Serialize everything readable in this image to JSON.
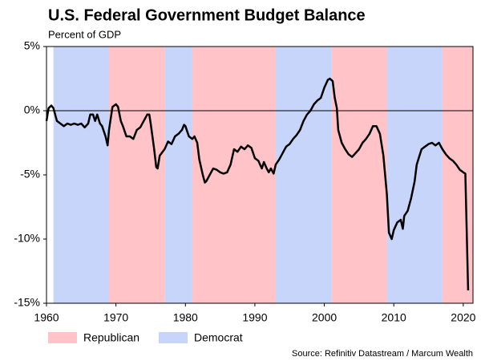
{
  "chart_data": {
    "type": "line",
    "title": "U.S. Federal Government Budget Balance",
    "subtitle": "Percent of GDP",
    "source": "Source: Refinitiv Datastream / Marcum Wealth",
    "legend": [
      {
        "name": "Republican",
        "color": "#ffc3c8"
      },
      {
        "name": "Democrat",
        "color": "#c7d5fb"
      }
    ],
    "shading": [
      {
        "party": "Democrat",
        "start": 1961,
        "end": 1969
      },
      {
        "party": "Republican",
        "start": 1969,
        "end": 1977
      },
      {
        "party": "Democrat",
        "start": 1977,
        "end": 1981
      },
      {
        "party": "Republican",
        "start": 1981,
        "end": 1993
      },
      {
        "party": "Democrat",
        "start": 1993,
        "end": 2001
      },
      {
        "party": "Republican",
        "start": 2001,
        "end": 2009
      },
      {
        "party": "Democrat",
        "start": 2009,
        "end": 2017
      },
      {
        "party": "Republican",
        "start": 2017,
        "end": 2021.4
      }
    ],
    "xlim": [
      1960,
      2021.4
    ],
    "ylim": [
      -15,
      5
    ],
    "xticks": [
      1960,
      1970,
      1980,
      1990,
      2000,
      2010,
      2020
    ],
    "yticks": [
      {
        "value": 5,
        "label": "5%"
      },
      {
        "value": 0,
        "label": "0%"
      },
      {
        "value": -5,
        "label": "-5%"
      },
      {
        "value": -10,
        "label": "-10%"
      },
      {
        "value": -15,
        "label": "-15%"
      }
    ],
    "zero_line": 0,
    "series": [
      {
        "color": "#000000",
        "x": [
          1960.0,
          1960.3,
          1960.7,
          1961.0,
          1961.5,
          1962,
          1962.5,
          1963,
          1963.5,
          1964,
          1964.5,
          1965,
          1965.5,
          1966,
          1966.3,
          1966.7,
          1967,
          1967.3,
          1967.7,
          1968,
          1968.5,
          1968.8,
          1969,
          1969.5,
          1970,
          1970.3,
          1970.7,
          1971,
          1971.5,
          1972,
          1972.5,
          1973,
          1973.5,
          1974,
          1974.5,
          1974.8,
          1975,
          1975.5,
          1975.8,
          1976,
          1976.3,
          1977,
          1977.5,
          1978,
          1978.5,
          1979,
          1979.5,
          1979.8,
          1980,
          1980.5,
          1981,
          1981.3,
          1981.7,
          1982,
          1982.5,
          1982.8,
          1983,
          1983.5,
          1984,
          1984.5,
          1985,
          1985.5,
          1986,
          1986.5,
          1987,
          1987.5,
          1988,
          1988.5,
          1989,
          1989.5,
          1990,
          1990.5,
          1991,
          1991.3,
          1991.7,
          1992,
          1992.3,
          1992.7,
          1993,
          1993.5,
          1994,
          1994.5,
          1995,
          1995.5,
          1996,
          1996.5,
          1997,
          1997.5,
          1998,
          1998.5,
          1999,
          1999.5,
          2000,
          2000.5,
          2000.8,
          2001.2,
          2001.5,
          2001.8,
          2002,
          2002.5,
          2003,
          2003.5,
          2004,
          2004.5,
          2005,
          2005.5,
          2006,
          2006.5,
          2007,
          2007.5,
          2008,
          2008.5,
          2009,
          2009.3,
          2009.7,
          2010,
          2010.5,
          2011,
          2011.3,
          2011.5,
          2012,
          2012.5,
          2013,
          2013.3,
          2013.7,
          2014,
          2014.5,
          2015,
          2015.5,
          2016,
          2016.5,
          2017,
          2017.5,
          2018,
          2018.5,
          2019,
          2019.5,
          2020,
          2020.3,
          2020.7
        ],
        "values": [
          -0.8,
          0.2,
          0.4,
          0.2,
          -0.8,
          -1.0,
          -1.2,
          -1.0,
          -1.1,
          -1.0,
          -1.1,
          -1.0,
          -1.3,
          -1.0,
          -0.3,
          -0.3,
          -0.8,
          -0.3,
          -1.0,
          -1.2,
          -2.0,
          -2.7,
          -1.5,
          0.3,
          0.5,
          0.3,
          -0.8,
          -1.2,
          -2.0,
          -2.0,
          -2.2,
          -1.5,
          -1.3,
          -0.8,
          -0.3,
          -0.3,
          -1.0,
          -3.0,
          -4.4,
          -4.5,
          -3.5,
          -3.0,
          -2.4,
          -2.6,
          -2.0,
          -1.8,
          -1.5,
          -1.1,
          -1.2,
          -2.0,
          -2.2,
          -2.0,
          -2.5,
          -3.8,
          -5.0,
          -5.6,
          -5.5,
          -5.0,
          -4.5,
          -4.6,
          -4.8,
          -4.9,
          -4.8,
          -4.2,
          -3.0,
          -3.2,
          -2.8,
          -3.0,
          -2.7,
          -2.9,
          -3.7,
          -3.9,
          -4.5,
          -4.0,
          -4.5,
          -4.8,
          -4.5,
          -4.9,
          -4.2,
          -3.8,
          -3.3,
          -2.8,
          -2.6,
          -2.2,
          -1.9,
          -1.5,
          -0.8,
          -0.3,
          0.0,
          0.5,
          0.8,
          1.0,
          1.8,
          2.4,
          2.5,
          2.3,
          1.0,
          0.2,
          -1.5,
          -2.5,
          -3.0,
          -3.4,
          -3.6,
          -3.3,
          -3.0,
          -2.5,
          -2.2,
          -1.8,
          -1.2,
          -1.2,
          -1.8,
          -3.5,
          -6.5,
          -9.5,
          -10.0,
          -9.3,
          -8.7,
          -8.5,
          -9.2,
          -8.2,
          -7.8,
          -6.8,
          -5.5,
          -4.2,
          -3.5,
          -3.0,
          -2.8,
          -2.6,
          -2.5,
          -2.7,
          -2.5,
          -3.0,
          -3.4,
          -3.7,
          -3.9,
          -4.2,
          -4.6,
          -4.8,
          -4.9,
          -14.0
        ]
      }
    ]
  }
}
